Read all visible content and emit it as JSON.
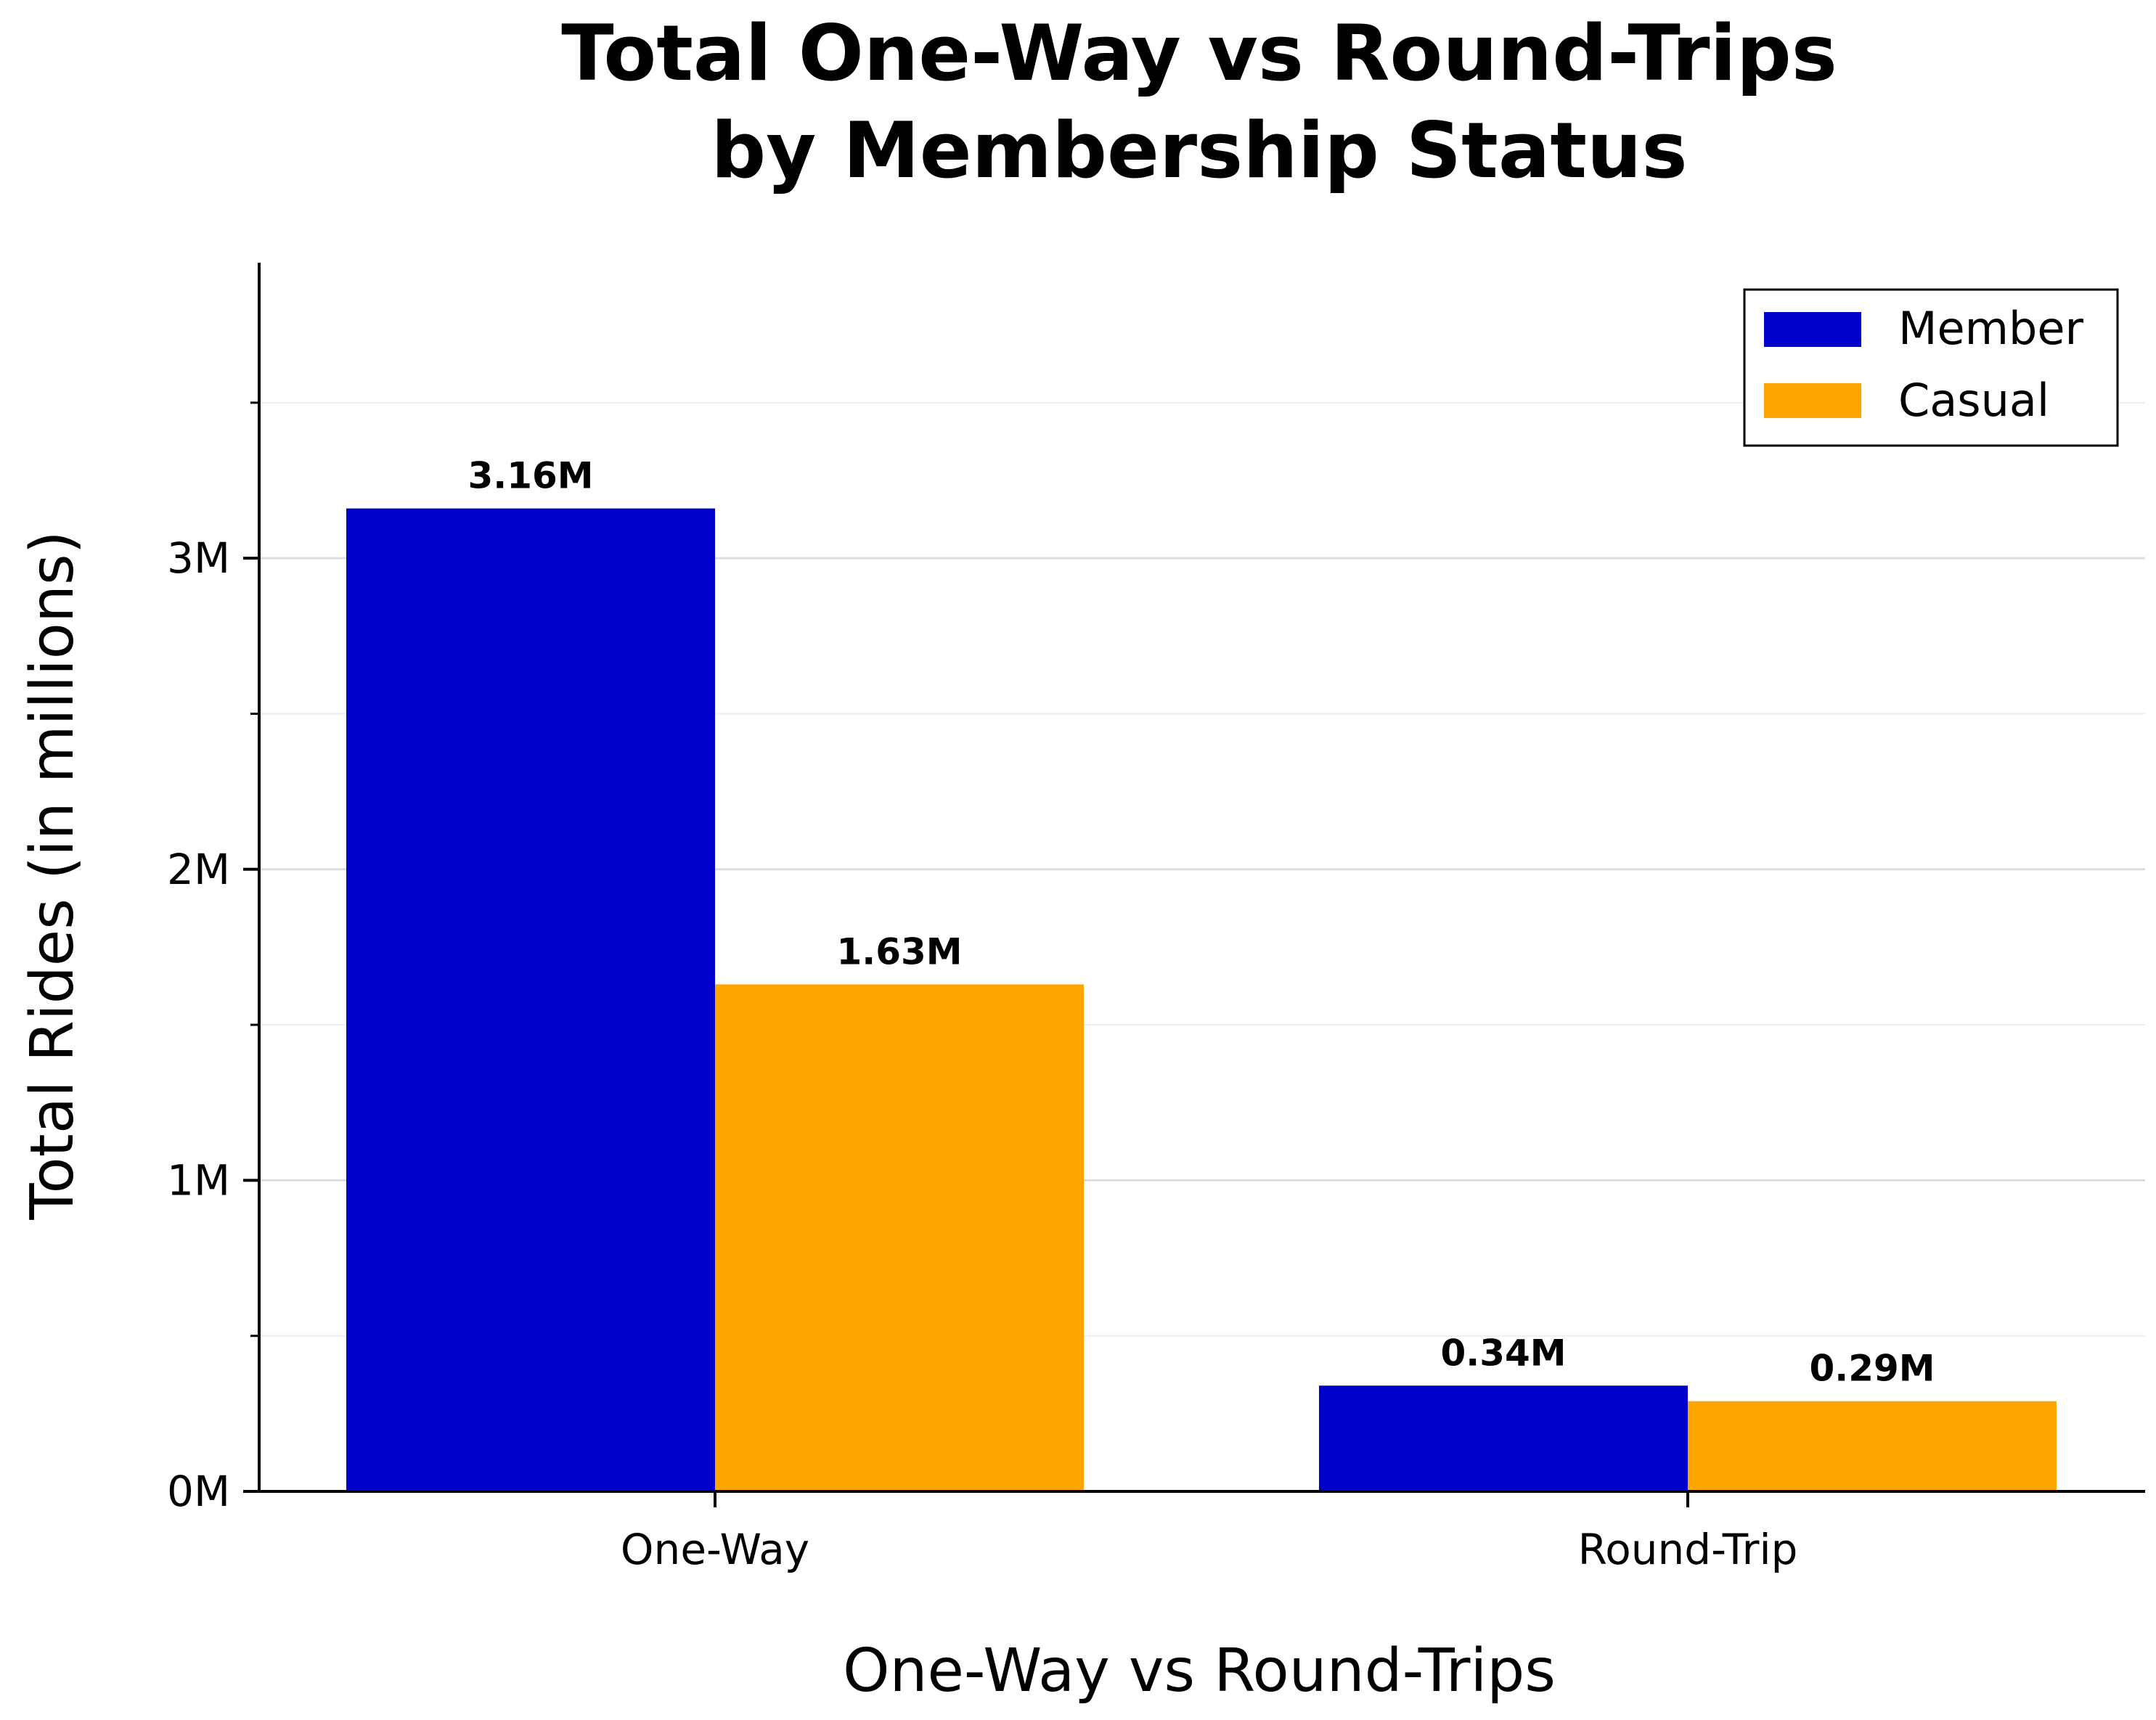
{
  "chart_data": {
    "type": "bar",
    "title": [
      "Total One-Way vs Round-Trips",
      "by Membership Status"
    ],
    "xlabel": "One-Way vs Round-Trips",
    "ylabel": "Total Rides (in millions)",
    "categories": [
      "One-Way",
      "Round-Trip"
    ],
    "series": [
      {
        "name": "Member",
        "color": "#0000CD",
        "values": [
          3.16,
          0.34
        ],
        "value_labels": [
          "3.16M",
          "0.34M"
        ]
      },
      {
        "name": "Casual",
        "color": "#FFA500",
        "values": [
          1.63,
          0.29
        ],
        "value_labels": [
          "1.63M",
          "0.29M"
        ]
      }
    ],
    "ylim": [
      0,
      3.95
    ],
    "yticks": [
      0,
      1,
      2,
      3
    ],
    "ytick_labels": [
      "0M",
      "1M",
      "2M",
      "3M"
    ],
    "minor_yticks": [
      0.5,
      1.5,
      2.5,
      3.5
    ],
    "grid": true,
    "legend_position": "top-right"
  }
}
